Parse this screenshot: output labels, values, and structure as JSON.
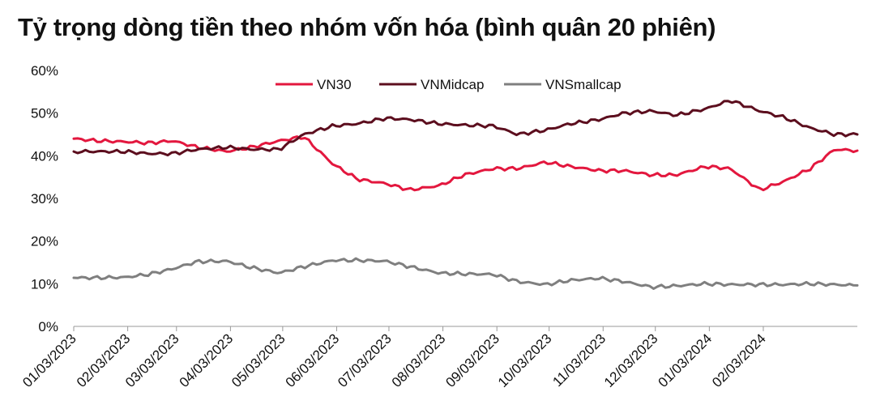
{
  "chart_data": {
    "type": "line",
    "title": "Tỷ trọng dòng tiền theo nhóm vốn hóa (bình quân 20 phiên)",
    "xlabel": "",
    "ylabel": "",
    "ylim": [
      0,
      60
    ],
    "yticks": [
      "0%",
      "10%",
      "20%",
      "30%",
      "40%",
      "50%",
      "60%"
    ],
    "xticks": [
      "01/03/2023",
      "02/03/2023",
      "03/03/2023",
      "04/03/2023",
      "05/03/2023",
      "06/03/2023",
      "07/03/2023",
      "08/03/2023",
      "09/03/2023",
      "10/03/2023",
      "11/03/2023",
      "12/03/2023",
      "01/03/2024",
      "02/03/2024"
    ],
    "grid": false,
    "legend": "top",
    "x": [
      "01/03/2023",
      "01/17/2023",
      "02/01/2023",
      "02/15/2023",
      "03/01/2023",
      "03/15/2023",
      "04/01/2023",
      "04/15/2023",
      "05/01/2023",
      "05/15/2023",
      "06/01/2023",
      "06/15/2023",
      "07/01/2023",
      "07/15/2023",
      "08/01/2023",
      "08/15/2023",
      "09/01/2023",
      "09/15/2023",
      "10/01/2023",
      "10/15/2023",
      "11/01/2023",
      "11/15/2023",
      "12/01/2023",
      "12/15/2023",
      "01/01/2024",
      "01/15/2024",
      "02/01/2024",
      "02/15/2024",
      "03/01/2024",
      "03/15/2024",
      "03/28/2024"
    ],
    "series": [
      {
        "name": "VN30",
        "color": "#E3173E",
        "values": [
          44.0,
          43.5,
          43.3,
          43.0,
          43.5,
          42.0,
          41.0,
          42.0,
          43.5,
          44.5,
          38.0,
          34.5,
          33.5,
          32.0,
          33.0,
          35.5,
          37.0,
          37.0,
          38.5,
          37.5,
          36.5,
          36.5,
          35.5,
          35.5,
          37.5,
          37.0,
          32.0,
          34.0,
          37.0,
          41.5,
          41.2
        ]
      },
      {
        "name": "VNMidcap",
        "color": "#5C0E1E",
        "values": [
          41.0,
          41.0,
          41.0,
          40.5,
          40.5,
          41.5,
          42.0,
          41.5,
          41.5,
          45.0,
          47.0,
          47.5,
          48.8,
          48.5,
          47.5,
          47.2,
          47.0,
          45.0,
          46.0,
          47.5,
          48.5,
          50.0,
          50.5,
          49.5,
          51.0,
          53.0,
          50.5,
          49.0,
          46.5,
          45.0,
          45.0
        ]
      },
      {
        "name": "VNSmallcap",
        "color": "#7F7F7F",
        "values": [
          11.4,
          11.4,
          11.5,
          12.2,
          13.5,
          15.2,
          15.3,
          13.8,
          12.5,
          14.0,
          15.5,
          15.5,
          15.3,
          14.0,
          12.5,
          12.3,
          12.2,
          10.5,
          9.8,
          10.8,
          11.3,
          10.5,
          9.2,
          9.5,
          10.0,
          9.8,
          9.8,
          9.8,
          10.0,
          9.8,
          9.6
        ]
      }
    ]
  }
}
